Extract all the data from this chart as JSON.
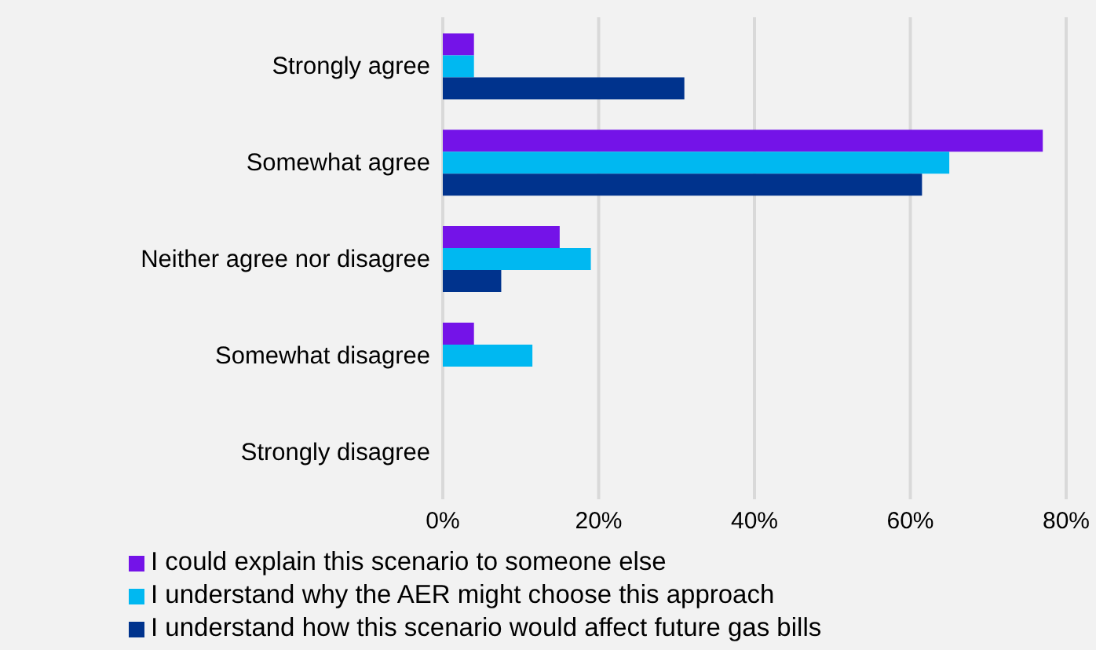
{
  "chart_data": {
    "type": "bar",
    "orientation": "horizontal",
    "categories": [
      "Strongly agree",
      "Somewhat agree",
      "Neither agree nor disagree",
      "Somewhat disagree",
      "Strongly disagree"
    ],
    "series": [
      {
        "name": "I could explain this scenario to someone else",
        "color": "#7413e8",
        "values": [
          4,
          77,
          15,
          4,
          0
        ]
      },
      {
        "name": "I understand why the AER might choose this approach",
        "color": "#00b8f1",
        "values": [
          4,
          65,
          19,
          11.5,
          0
        ]
      },
      {
        "name": "I understand how this scenario would affect future gas bills",
        "color": "#00338d",
        "values": [
          31,
          61.5,
          7.5,
          0,
          0
        ]
      }
    ],
    "xlim": [
      0,
      80
    ],
    "xticks": [
      {
        "value": 0,
        "label": "0%"
      },
      {
        "value": 20,
        "label": "20%"
      },
      {
        "value": 40,
        "label": "40%"
      },
      {
        "value": 60,
        "label": "60%"
      },
      {
        "value": 80,
        "label": "80%"
      }
    ],
    "grid": "x",
    "legend": "bottom"
  }
}
